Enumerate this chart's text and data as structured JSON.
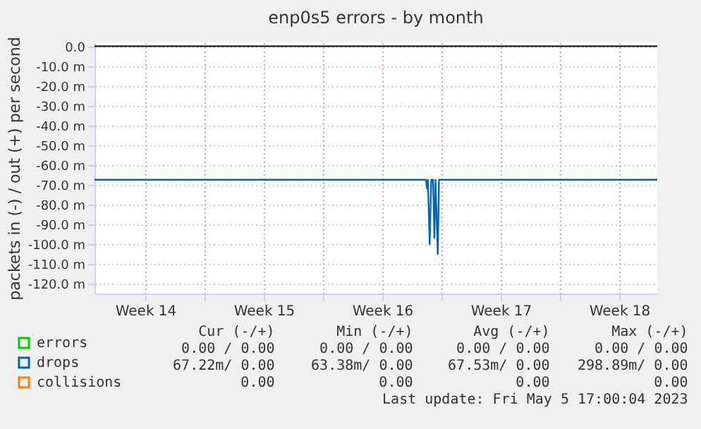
{
  "chart_data": {
    "type": "line",
    "title": "enp0s5 errors - by month",
    "ylabel": "packets in (-) / out (+) per second",
    "x": [
      "2023-04-03T12:00",
      "2023-04-23T00:00",
      "2023-04-23T02:00",
      "2023-04-23T03:30",
      "2023-04-23T04:45",
      "2023-04-23T07:15",
      "2023-04-23T09:30",
      "2023-04-23T12:00",
      "2023-04-23T14:00",
      "2023-04-23T15:30",
      "2023-04-23T18:45",
      "2023-04-23T20:30",
      "2023-05-06T18:00"
    ],
    "series": [
      {
        "name": "errors",
        "color": "#00cc00",
        "values": [
          null,
          null,
          null,
          null,
          null,
          null,
          null,
          null,
          null,
          null,
          null,
          null,
          null
        ]
      },
      {
        "name": "drops",
        "color": "#0066b3",
        "values": [
          -67.5,
          -67.5,
          -67.5,
          -72,
          -67.5,
          -100,
          -67.5,
          -67.5,
          -97,
          -67.5,
          -105,
          -67.5,
          -67.5
        ]
      },
      {
        "name": "collisions",
        "color": "#ff8000",
        "values": [
          null,
          null,
          null,
          null,
          null,
          null,
          null,
          null,
          null,
          null,
          null,
          null,
          null
        ]
      }
    ],
    "xlim": [
      "2023-04-03T12:00",
      "2023-05-06T18:00"
    ],
    "xticks": [
      {
        "value": "2023-04-06T12:00",
        "label": "Week 14"
      },
      {
        "value": "2023-04-10T00:00",
        "label": null
      },
      {
        "value": "2023-04-13T12:00",
        "label": "Week 15"
      },
      {
        "value": "2023-04-17T00:00",
        "label": null
      },
      {
        "value": "2023-04-20T12:00",
        "label": "Week 16"
      },
      {
        "value": "2023-04-24T00:00",
        "label": null
      },
      {
        "value": "2023-04-27T12:00",
        "label": "Week 17"
      },
      {
        "value": "2023-05-01T00:00",
        "label": null
      },
      {
        "value": "2023-05-04T12:00",
        "label": "Week 18"
      }
    ],
    "ylim": [
      -125,
      2
    ],
    "yticks": [
      {
        "value": 0,
        "label": "0.0"
      },
      {
        "value": -10,
        "label": "-10.0 m"
      },
      {
        "value": -20,
        "label": "-20.0 m"
      },
      {
        "value": -30,
        "label": "-30.0 m"
      },
      {
        "value": -40,
        "label": "-40.0 m"
      },
      {
        "value": -50,
        "label": "-50.0 m"
      },
      {
        "value": -60,
        "label": "-60.0 m"
      },
      {
        "value": -70,
        "label": "-70.0 m"
      },
      {
        "value": -80,
        "label": "-80.0 m"
      },
      {
        "value": -90,
        "label": "-90.0 m"
      },
      {
        "value": -100,
        "label": "-100.0 m"
      },
      {
        "value": -110,
        "label": "-110.0 m"
      },
      {
        "value": -120,
        "label": "-120.0 m"
      }
    ],
    "ref_lines": [
      {
        "axis": "y",
        "value": 0,
        "color": "#000000"
      }
    ],
    "grid": true,
    "legend": "bottom left",
    "marker": "none",
    "line_style": "solid",
    "annotations": [
      "Cur (-/+)",
      "Min (-/+)",
      "Avg (-/+)",
      "Max (-/+)",
      "0.00 /  0.00",
      "0.00 /  0.00",
      "0.00 /  0.00",
      "0.00 /  0.00",
      "67.22m/  0.00",
      "63.38m/  0.00",
      "67.53m/  0.00",
      "298.89m/  0.00",
      "0.00",
      "0.00",
      "0.00",
      "0.00",
      "Last update: Fri May  5 17:00:04 2023"
    ]
  }
}
